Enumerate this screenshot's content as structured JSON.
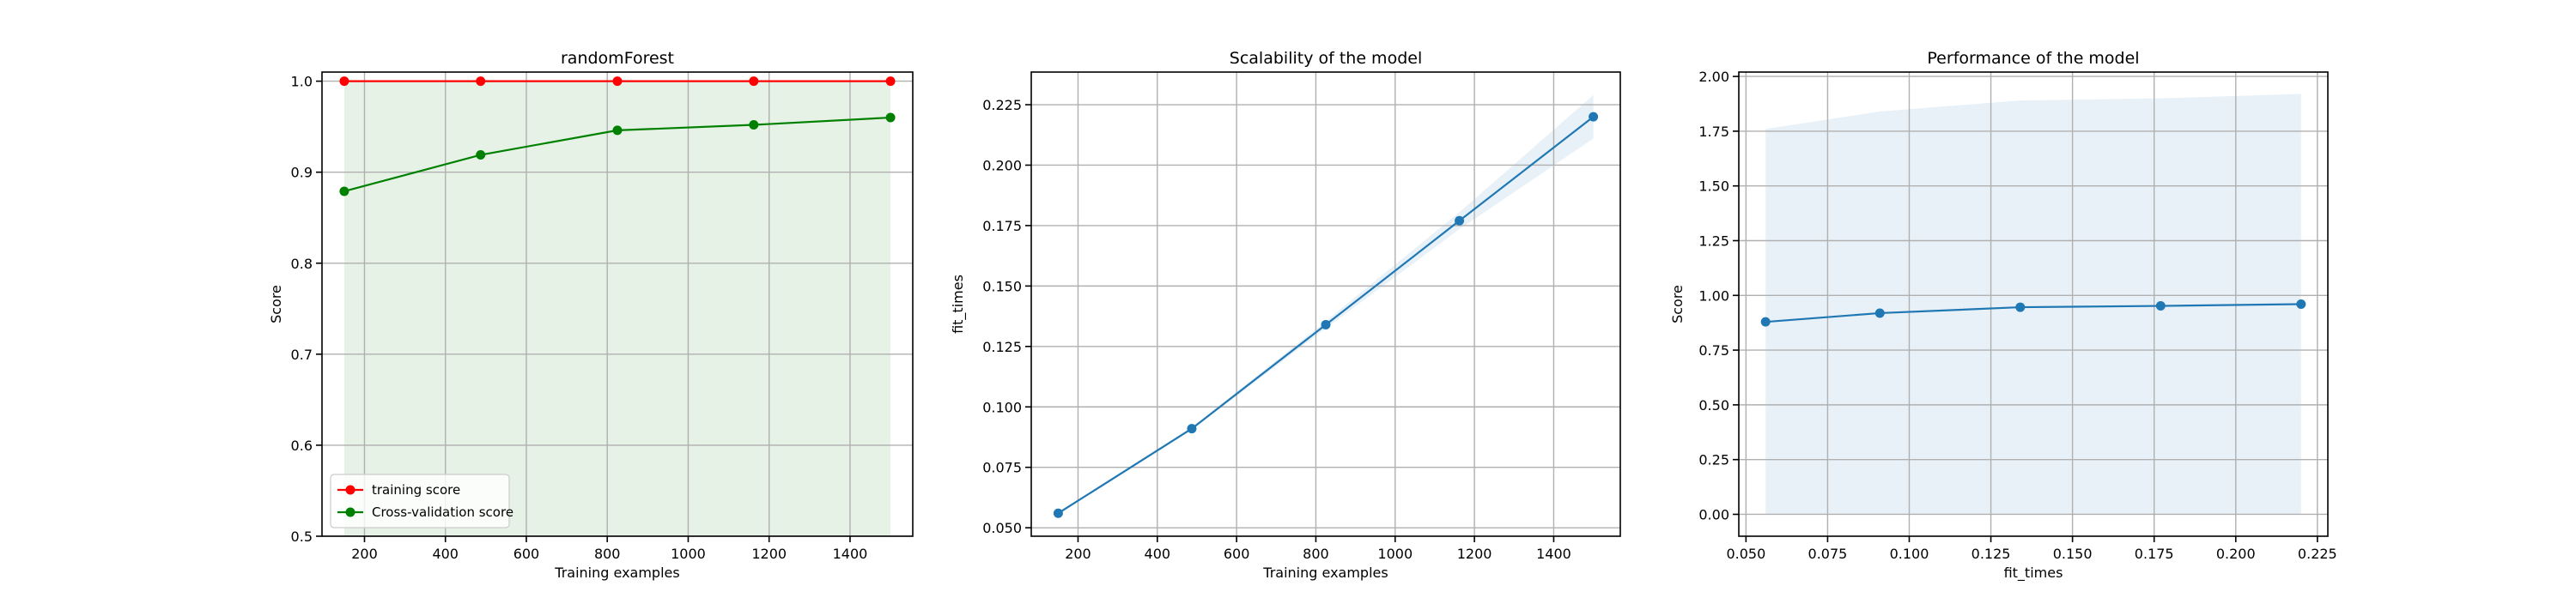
{
  "chart_data": [
    {
      "type": "line",
      "title": "randomForest",
      "xlabel": "Training examples",
      "ylabel": "Score",
      "xlim": [
        95,
        1555
      ],
      "ylim": [
        0.5,
        1.01
      ],
      "xticks": [
        200,
        400,
        600,
        800,
        1000,
        1200,
        1400
      ],
      "yticks": [
        0.5,
        0.6,
        0.7,
        0.8,
        0.9,
        1.0
      ],
      "ytick_labels": [
        "0.5",
        "0.6",
        "0.7",
        "0.8",
        "0.9",
        "1.0"
      ],
      "grid": true,
      "legend_position": "lower-left",
      "x": [
        150,
        487,
        825,
        1162,
        1500
      ],
      "series": [
        {
          "name": "training score",
          "color": "#ff0000",
          "values": [
            1.0,
            1.0,
            1.0,
            1.0,
            1.0
          ],
          "band": {
            "lower": [
              1.0,
              1.0,
              1.0,
              1.0,
              1.0
            ],
            "upper": [
              1.0,
              1.0,
              1.0,
              1.0,
              1.0
            ],
            "color": "#ff0000"
          }
        },
        {
          "name": "Cross-validation score",
          "color": "#008000",
          "values": [
            0.879,
            0.919,
            0.946,
            0.952,
            0.96
          ],
          "band": {
            "lower": [
              0.5,
              0.5,
              0.5,
              0.5,
              0.5
            ],
            "upper": [
              1.0,
              1.0,
              1.0,
              1.0,
              1.0
            ],
            "color": "#008000"
          }
        }
      ]
    },
    {
      "type": "line",
      "title": "Scalability of the model",
      "xlabel": "Training examples",
      "ylabel": "fit_times",
      "xlim": [
        82,
        1568
      ],
      "ylim": [
        0.0465,
        0.2385
      ],
      "xticks": [
        200,
        400,
        600,
        800,
        1000,
        1200,
        1400
      ],
      "yticks": [
        0.05,
        0.075,
        0.1,
        0.125,
        0.15,
        0.175,
        0.2,
        0.225
      ],
      "ytick_labels": [
        "0.050",
        "0.075",
        "0.100",
        "0.125",
        "0.150",
        "0.175",
        "0.200",
        "0.225"
      ],
      "grid": true,
      "x": [
        150,
        487,
        825,
        1162,
        1500
      ],
      "series": [
        {
          "color": "#1f77b4",
          "values": [
            0.056,
            0.091,
            0.134,
            0.177,
            0.22
          ],
          "band": {
            "lower": [
              0.0555,
              0.0905,
              0.1325,
              0.1735,
              0.211
            ],
            "upper": [
              0.0565,
              0.0915,
              0.1355,
              0.1805,
              0.229
            ],
            "color": "#1f77b4"
          }
        }
      ]
    },
    {
      "type": "line",
      "title": "Performance of the model",
      "xlabel": "fit_times",
      "ylabel": "Score",
      "xlim": [
        0.0478,
        0.2282
      ],
      "ylim": [
        -0.1,
        2.02
      ],
      "xticks": [
        0.05,
        0.075,
        0.1,
        0.125,
        0.15,
        0.175,
        0.2,
        0.225
      ],
      "xtick_labels": [
        "0.050",
        "0.075",
        "0.100",
        "0.125",
        "0.150",
        "0.175",
        "0.200",
        "0.225"
      ],
      "yticks": [
        0.0,
        0.25,
        0.5,
        0.75,
        1.0,
        1.25,
        1.5,
        1.75,
        2.0
      ],
      "ytick_labels": [
        "0.00",
        "0.25",
        "0.50",
        "0.75",
        "1.00",
        "1.25",
        "1.50",
        "1.75",
        "2.00"
      ],
      "grid": true,
      "x": [
        0.056,
        0.091,
        0.134,
        0.177,
        0.22
      ],
      "series": [
        {
          "color": "#1f77b4",
          "values": [
            0.879,
            0.919,
            0.946,
            0.952,
            0.96
          ],
          "band": {
            "lower": [
              0.0,
              0.0,
              0.0,
              0.0,
              0.0
            ],
            "upper": [
              1.76,
              1.84,
              1.89,
              1.9,
              1.92
            ],
            "color": "#1f77b4"
          }
        }
      ]
    }
  ]
}
